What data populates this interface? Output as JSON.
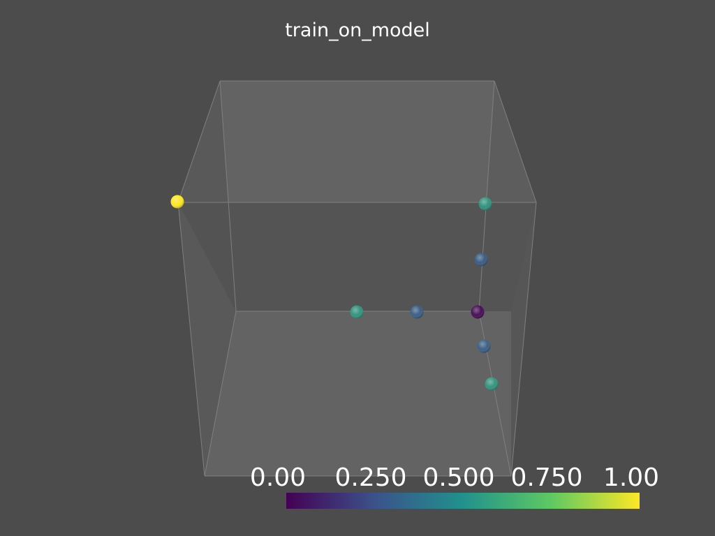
{
  "scene": {
    "title": "train_on_model",
    "background_color": "#4c4c4c",
    "box_face_color": "#808080",
    "box_edge_color": "#8a8a8a"
  },
  "points": [
    {
      "id": "p1",
      "value": 1.0
    },
    {
      "id": "p2",
      "value": 0.55
    },
    {
      "id": "p3",
      "value": 0.3
    },
    {
      "id": "p4",
      "value": 0.55
    },
    {
      "id": "p5",
      "value": 0.3
    },
    {
      "id": "p6",
      "value": 0.0
    },
    {
      "id": "p7",
      "value": 0.3
    },
    {
      "id": "p8",
      "value": 0.55
    }
  ],
  "colorbar": {
    "min": 0.0,
    "max": 1.0,
    "colormap": "viridis",
    "ticks": [
      {
        "value": 0.0,
        "label": "0.00"
      },
      {
        "value": 0.25,
        "label": "0.250"
      },
      {
        "value": 0.5,
        "label": "0.500"
      },
      {
        "value": 0.75,
        "label": "0.750"
      },
      {
        "value": 1.0,
        "label": "1.00"
      }
    ],
    "stops": [
      "#440154",
      "#3b528b",
      "#21918c",
      "#5ec962",
      "#fde725"
    ]
  }
}
